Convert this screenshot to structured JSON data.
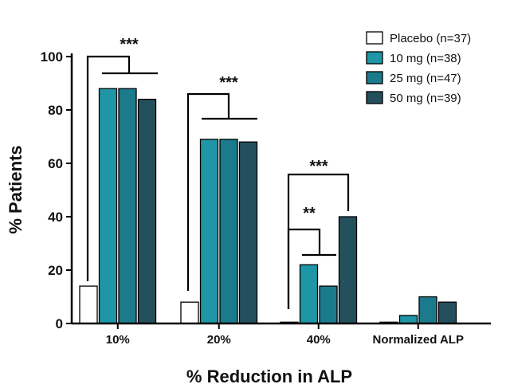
{
  "chart_data": {
    "type": "bar",
    "title": "",
    "xlabel": "% Reduction in ALP",
    "ylabel": "% Patients",
    "ylim": [
      0,
      100
    ],
    "yticks": [
      0,
      20,
      40,
      60,
      80,
      100
    ],
    "categories": [
      "10%",
      "20%",
      "40%",
      "Normalized ALP"
    ],
    "series": [
      {
        "name": "Placebo (n=37)",
        "color": "#ffffff",
        "values": [
          14,
          8,
          0.5,
          0.5
        ]
      },
      {
        "name": "10 mg (n=38)",
        "color": "#1e96a6",
        "values": [
          88,
          69,
          22,
          3
        ]
      },
      {
        "name": "25 mg (n=47)",
        "color": "#1b7b8c",
        "values": [
          88,
          69,
          14,
          10
        ]
      },
      {
        "name": "50 mg (n=39)",
        "color": "#24505e",
        "values": [
          84,
          68,
          40,
          8
        ]
      }
    ],
    "legend_position": "top-right",
    "grid": false,
    "significance": [
      {
        "category": "10%",
        "label": "***"
      },
      {
        "category": "20%",
        "label": "***"
      },
      {
        "category": "40%",
        "label": "***"
      },
      {
        "category": "40%",
        "label": "**"
      }
    ]
  }
}
